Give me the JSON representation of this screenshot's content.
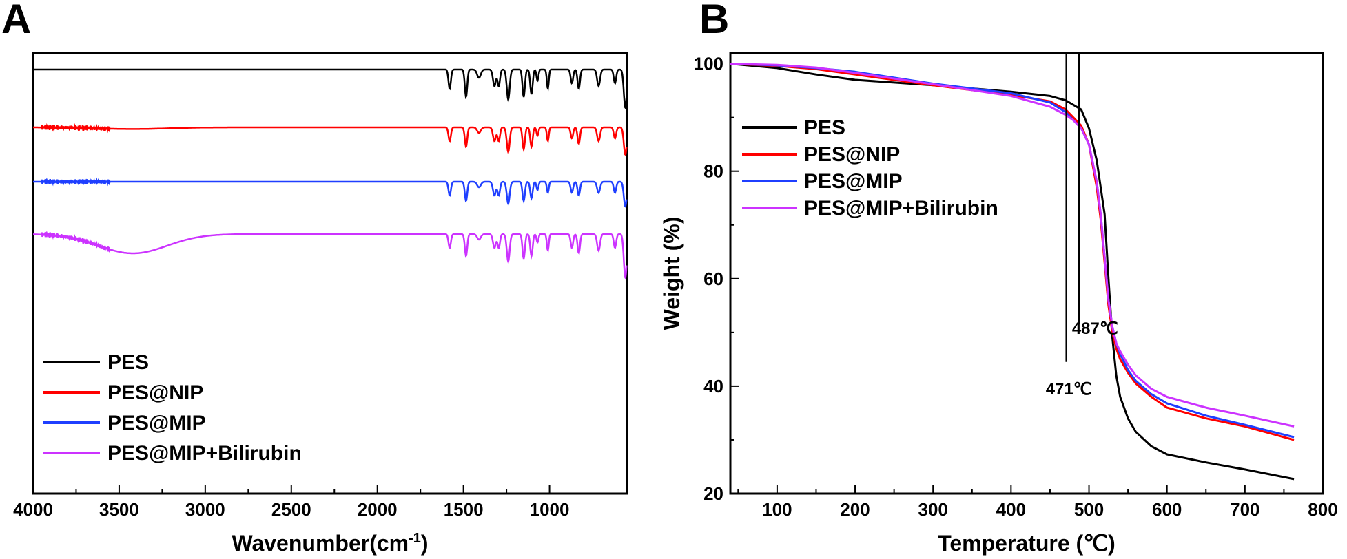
{
  "chart_data": [
    {
      "panel": "A",
      "type": "line",
      "title": "",
      "xlabel": "Wavenumber(cm",
      "xlabel_sup": "-1",
      "xlabel_close": ")",
      "ylabel": "",
      "xlim": [
        4000,
        550
      ],
      "x_reversed": true,
      "y_ticks_shown": false,
      "x_ticks": [
        4000,
        3500,
        3000,
        2500,
        2000,
        1500,
        1000
      ],
      "legend": [
        "PES",
        "PES@NIP",
        "PES@MIP",
        "PES@MIP+Bilirubin"
      ],
      "legend_position": "bottom-left",
      "series": [
        {
          "name": "PES",
          "color": "#000000",
          "offset": 3.0,
          "broad": 0.0,
          "peaks": [
            [
              1580,
              0.35,
              10
            ],
            [
              1485,
              0.5,
              10
            ],
            [
              1410,
              0.15,
              15
            ],
            [
              1320,
              0.3,
              12
            ],
            [
              1295,
              0.3,
              10
            ],
            [
              1240,
              0.55,
              12
            ],
            [
              1150,
              0.5,
              10
            ],
            [
              1105,
              0.45,
              10
            ],
            [
              1070,
              0.2,
              8
            ],
            [
              1010,
              0.35,
              8
            ],
            [
              870,
              0.25,
              10
            ],
            [
              830,
              0.35,
              10
            ],
            [
              715,
              0.3,
              12
            ],
            [
              620,
              0.25,
              10
            ],
            [
              560,
              0.7,
              12
            ]
          ]
        },
        {
          "name": "PES@NIP",
          "color": "#ff0000",
          "offset": 2.0,
          "broad": 0.03,
          "peaks": [
            [
              1580,
              0.25,
              10
            ],
            [
              1485,
              0.35,
              10
            ],
            [
              1410,
              0.1,
              15
            ],
            [
              1320,
              0.25,
              12
            ],
            [
              1295,
              0.25,
              10
            ],
            [
              1240,
              0.45,
              12
            ],
            [
              1150,
              0.4,
              10
            ],
            [
              1105,
              0.35,
              10
            ],
            [
              1070,
              0.15,
              8
            ],
            [
              1010,
              0.25,
              8
            ],
            [
              870,
              0.2,
              10
            ],
            [
              830,
              0.3,
              10
            ],
            [
              715,
              0.25,
              12
            ],
            [
              620,
              0.2,
              10
            ],
            [
              560,
              0.5,
              12
            ]
          ]
        },
        {
          "name": "PES@MIP",
          "color": "#1f3fff",
          "offset": 1.0,
          "broad": 0.0,
          "peaks": [
            [
              1580,
              0.25,
              10
            ],
            [
              1485,
              0.35,
              10
            ],
            [
              1410,
              0.1,
              15
            ],
            [
              1320,
              0.25,
              12
            ],
            [
              1295,
              0.25,
              10
            ],
            [
              1240,
              0.4,
              12
            ],
            [
              1150,
              0.35,
              10
            ],
            [
              1105,
              0.3,
              10
            ],
            [
              1070,
              0.15,
              8
            ],
            [
              1010,
              0.2,
              8
            ],
            [
              870,
              0.2,
              10
            ],
            [
              830,
              0.25,
              10
            ],
            [
              715,
              0.2,
              12
            ],
            [
              620,
              0.2,
              10
            ],
            [
              560,
              0.45,
              12
            ]
          ]
        },
        {
          "name": "PES@MIP+Bilirubin",
          "color": "#cc33ff",
          "offset": 0.0,
          "broad": 0.35,
          "peaks": [
            [
              1580,
              0.25,
              10
            ],
            [
              1485,
              0.4,
              10
            ],
            [
              1410,
              0.1,
              15
            ],
            [
              1320,
              0.25,
              12
            ],
            [
              1295,
              0.25,
              10
            ],
            [
              1240,
              0.5,
              12
            ],
            [
              1150,
              0.45,
              10
            ],
            [
              1105,
              0.4,
              10
            ],
            [
              1070,
              0.15,
              8
            ],
            [
              1010,
              0.3,
              8
            ],
            [
              870,
              0.25,
              10
            ],
            [
              830,
              0.35,
              10
            ],
            [
              715,
              0.3,
              12
            ],
            [
              620,
              0.25,
              10
            ],
            [
              560,
              0.8,
              12
            ]
          ]
        }
      ]
    },
    {
      "panel": "B",
      "type": "line",
      "title": "",
      "xlabel": "Temperature (℃)",
      "ylabel": "Weight (%)",
      "xlim": [
        40,
        800
      ],
      "ylim": [
        20,
        102
      ],
      "x_ticks": [
        100,
        200,
        300,
        400,
        500,
        600,
        700,
        800
      ],
      "y_ticks": [
        20,
        40,
        60,
        80,
        100
      ],
      "legend": [
        "PES",
        "PES@NIP",
        "PES@MIP",
        "PES@MIP+Bilirubin"
      ],
      "legend_position": "top-left",
      "annotations": [
        {
          "x": 471,
          "label": "471℃",
          "line_to_y": 44.5
        },
        {
          "x": 487,
          "label": "487℃",
          "line_to_y": 51.5
        }
      ],
      "series": [
        {
          "name": "PES",
          "color": "#000000",
          "x": [
            40,
            100,
            150,
            200,
            300,
            400,
            450,
            470,
            490,
            500,
            510,
            520,
            525,
            530,
            535,
            540,
            550,
            560,
            580,
            600,
            650,
            700,
            763
          ],
          "y": [
            100,
            99.2,
            98,
            97,
            96,
            94.8,
            94,
            93.2,
            91.5,
            88,
            82,
            72,
            60,
            49,
            42,
            38,
            34,
            31.5,
            28.8,
            27.3,
            25.8,
            24.5,
            22.7
          ]
        },
        {
          "name": "PES@NIP",
          "color": "#ff0000",
          "x": [
            40,
            100,
            150,
            200,
            300,
            400,
            450,
            470,
            480,
            490,
            500,
            510,
            515,
            520,
            525,
            530,
            535,
            540,
            550,
            560,
            580,
            600,
            650,
            700,
            763
          ],
          "y": [
            100,
            99.6,
            99,
            98,
            96,
            94.2,
            93,
            91.5,
            90,
            88.5,
            85,
            77,
            71,
            63,
            55,
            50,
            47,
            45,
            42.5,
            40.5,
            38,
            36,
            34,
            32.5,
            30
          ]
        },
        {
          "name": "PES@MIP",
          "color": "#1f3fff",
          "x": [
            40,
            100,
            150,
            200,
            300,
            400,
            450,
            470,
            480,
            490,
            500,
            510,
            515,
            520,
            525,
            530,
            535,
            540,
            550,
            560,
            580,
            600,
            650,
            700,
            763
          ],
          "y": [
            100,
            99.7,
            99.2,
            98.5,
            96.3,
            94.5,
            92.8,
            91,
            89.5,
            88,
            85,
            78,
            72,
            64,
            56,
            51,
            48,
            46,
            43,
            41,
            38.5,
            36.8,
            34.5,
            32.8,
            30.5
          ]
        },
        {
          "name": "PES@MIP+Bilirubin",
          "color": "#cc33ff",
          "x": [
            40,
            100,
            150,
            200,
            300,
            400,
            450,
            470,
            480,
            490,
            500,
            510,
            515,
            520,
            525,
            530,
            535,
            540,
            550,
            560,
            580,
            600,
            650,
            700,
            763
          ],
          "y": [
            100,
            99.8,
            99.3,
            98.3,
            96.2,
            94,
            92,
            90.5,
            89.5,
            88,
            85,
            78,
            72,
            64,
            56,
            51,
            48,
            46.5,
            44,
            42,
            39.5,
            38,
            36,
            34.5,
            32.5
          ]
        }
      ]
    }
  ]
}
